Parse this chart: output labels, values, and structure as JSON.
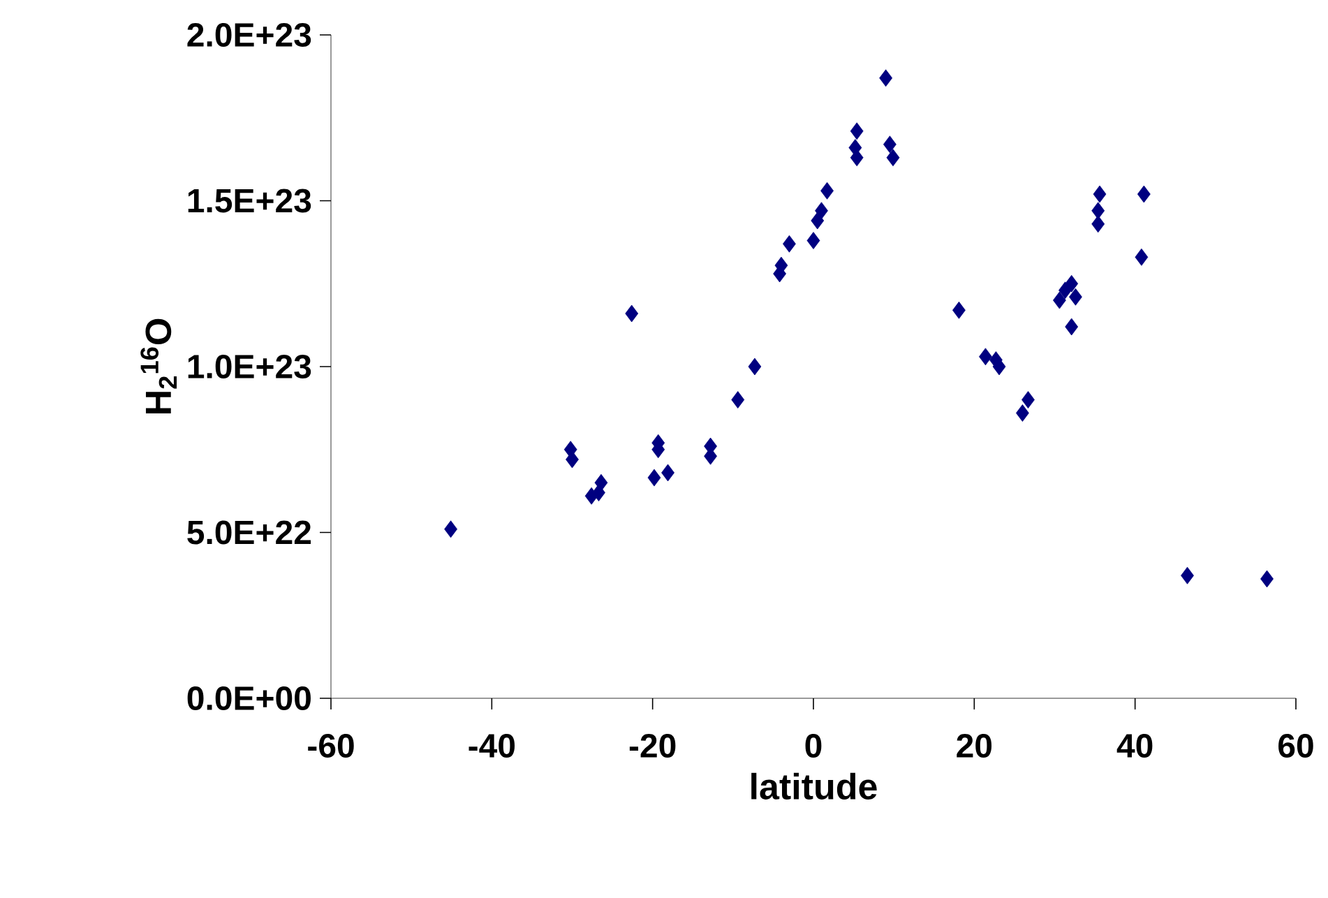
{
  "chart_data": {
    "type": "scatter",
    "xlabel": "latitude",
    "ylabel": "H$_{2}$$^{16}$O",
    "marker": "diamond",
    "color": "#000080",
    "xlim": [
      -60,
      60
    ],
    "xticks": [
      -60,
      -40,
      -20,
      0,
      20,
      40,
      60
    ],
    "ylim": [
      0,
      2e+23
    ],
    "yticks": [
      {
        "value": 0,
        "label": "0.0E+00"
      },
      {
        "value": 5e+22,
        "label": "5.0E+22"
      },
      {
        "value": 1e+23,
        "label": "1.0E+23"
      },
      {
        "value": 1.5e+23,
        "label": "1.5E+23"
      },
      {
        "value": 2e+23,
        "label": "2.0E+23"
      }
    ],
    "x": [
      -45.1,
      -30.2,
      -30.0,
      -26.4,
      -26.7,
      -27.6,
      -22.6,
      -19.3,
      -19.3,
      -19.8,
      -18.1,
      -12.8,
      -12.8,
      -9.4,
      -7.3,
      -4.2,
      -4.0,
      -3.0,
      0.0,
      0.5,
      1.0,
      1.7,
      5.4,
      5.2,
      5.4,
      9.5,
      9.9,
      9.0,
      18.1,
      21.4,
      22.7,
      23.1,
      26.7,
      26.0,
      32.1,
      31.3,
      30.6,
      32.1,
      32.6,
      35.6,
      35.4,
      35.4,
      41.1,
      40.8,
      46.5,
      56.4
    ],
    "values": [
      5.1e+22,
      7.5e+22,
      7.2e+22,
      6.5e+22,
      6.2e+22,
      6.1e+22,
      1.16e+23,
      7.7e+22,
      7.5e+22,
      6.65e+22,
      6.8e+22,
      7.6e+22,
      7.3e+22,
      9e+22,
      1e+23,
      1.28e+23,
      1.305e+23,
      1.37e+23,
      1.38e+23,
      1.44e+23,
      1.47e+23,
      1.53e+23,
      1.63e+23,
      1.66e+23,
      1.71e+23,
      1.67e+23,
      1.63e+23,
      1.87e+23,
      1.17e+23,
      1.03e+23,
      1.02e+23,
      1e+23,
      9e+22,
      8.6e+22,
      1.25e+23,
      1.23e+23,
      1.2e+23,
      1.12e+23,
      1.21e+23,
      1.52e+23,
      1.47e+23,
      1.43e+23,
      1.52e+23,
      1.33e+23,
      3.7e+22,
      3.6e+22
    ]
  }
}
